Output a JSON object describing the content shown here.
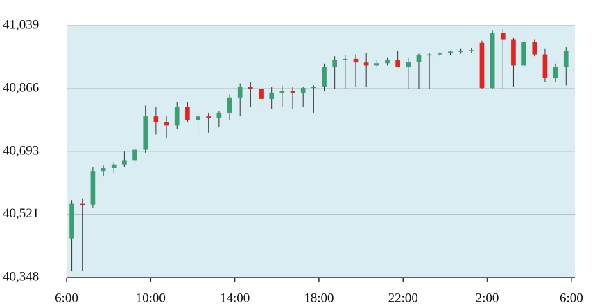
{
  "chart_data": {
    "type": "candlestick",
    "x": [
      6.25,
      6.75,
      7.25,
      7.75,
      8.25,
      8.75,
      9.25,
      9.75,
      10.25,
      10.75,
      11.25,
      11.75,
      12.25,
      12.75,
      13.25,
      13.75,
      14.25,
      14.75,
      15.25,
      15.75,
      16.25,
      16.75,
      17.25,
      17.75,
      18.25,
      18.75,
      19.25,
      19.75,
      20.25,
      20.75,
      21.25,
      21.75,
      22.25,
      22.75,
      23.25,
      23.75,
      24.25,
      24.75,
      25.25,
      25.75,
      26.25,
      26.75,
      27.25,
      27.75,
      28.25,
      28.75,
      29.25,
      29.75
    ],
    "open": [
      40455,
      40550,
      40548,
      40640,
      40648,
      40658,
      40670,
      40700,
      40790,
      40775,
      40765,
      40815,
      40780,
      40790,
      40785,
      40800,
      40842,
      40870,
      40866,
      40838,
      40855,
      40860,
      40855,
      40868,
      40872,
      40925,
      40945,
      40948,
      40938,
      40930,
      40936,
      40945,
      40925,
      40940,
      40958,
      40960,
      40963,
      40968,
      40970,
      40992,
      40868,
      41020,
      41000,
      40930,
      40995,
      40960,
      40895,
      40925
    ],
    "high": [
      40560,
      40565,
      40650,
      40655,
      40665,
      40695,
      40705,
      40820,
      40815,
      40790,
      40830,
      40830,
      40800,
      40800,
      40805,
      40850,
      40880,
      40885,
      40880,
      40870,
      40875,
      40870,
      40872,
      40875,
      40935,
      40955,
      40958,
      40960,
      40965,
      40945,
      40950,
      40970,
      40950,
      40962,
      40965,
      40966,
      40970,
      40975,
      40978,
      40998,
      41025,
      41030,
      41005,
      41000,
      41000,
      40975,
      40935,
      40980
    ],
    "low": [
      40365,
      40365,
      40540,
      40625,
      40635,
      40650,
      40660,
      40690,
      40740,
      40730,
      40755,
      40775,
      40740,
      40745,
      40760,
      40780,
      40790,
      40815,
      40820,
      40810,
      40815,
      40810,
      40815,
      40800,
      40860,
      40866,
      40866,
      40870,
      40870,
      40925,
      40930,
      40930,
      40866,
      40866,
      40866,
      40955,
      40958,
      40962,
      40965,
      40866,
      40866,
      40866,
      40870,
      40925,
      40955,
      40885,
      40885,
      40875
    ],
    "close": [
      40550,
      40548,
      40640,
      40648,
      40658,
      40670,
      40700,
      40790,
      40775,
      40765,
      40815,
      40780,
      40790,
      40785,
      40800,
      40842,
      40870,
      40866,
      40838,
      40855,
      40860,
      40855,
      40868,
      40872,
      40925,
      40945,
      40948,
      40938,
      40930,
      40936,
      40945,
      40925,
      40940,
      40958,
      40960,
      40963,
      40968,
      40970,
      40972,
      40868,
      41020,
      41000,
      40930,
      40995,
      40960,
      40895,
      40925,
      40970
    ],
    "up_color": "#3a9f72",
    "down_color": "#e52420",
    "wick_color": "#333333",
    "xlim": [
      6,
      30.17
    ],
    "ylim": [
      40348,
      41039
    ],
    "xticks": [
      {
        "value": 6,
        "label": "6:00"
      },
      {
        "value": 10,
        "label": "10:00"
      },
      {
        "value": 14,
        "label": "14:00"
      },
      {
        "value": 18,
        "label": "18:00"
      },
      {
        "value": 22,
        "label": "22:00"
      },
      {
        "value": 26,
        "label": "2:00"
      },
      {
        "value": 30,
        "label": "6:00"
      }
    ],
    "yticks": [
      {
        "value": 40348,
        "label": "40,348"
      },
      {
        "value": 40521,
        "label": "40,521"
      },
      {
        "value": 40693,
        "label": "40,693"
      },
      {
        "value": 40866,
        "label": "40,866"
      },
      {
        "value": 41039,
        "label": "41,039"
      }
    ],
    "grid": true
  }
}
